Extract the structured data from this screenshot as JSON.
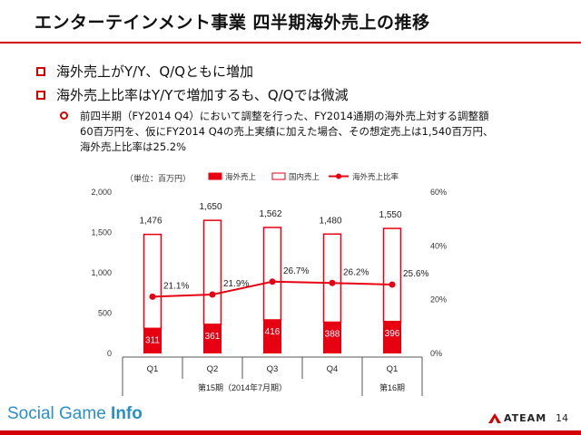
{
  "slide": {
    "title": "エンターテインメント事業 四半期海外売上の推移",
    "bullets": [
      "海外売上がY/Y、Q/Qともに増加",
      "海外売上比率はY/Yで増加するも、Q/Qでは微減"
    ],
    "sub_bullet_lines": [
      "前四半期（FY2014 Q4）において調整を行った、FY2014通期の海外売上対する調整額",
      "60百万円を、仮にFY2014 Q4の売上実績に加えた場合、その想定売上は1,540百万円、",
      "海外売上比率は25.2%"
    ],
    "page_number": "14",
    "brand_name": "ATEAM",
    "source_logo": {
      "part1": "Social Game ",
      "part2": "Info"
    }
  },
  "chart_data": {
    "type": "bar",
    "unit_label": "（単位：百万円）",
    "categories": [
      "Q1",
      "Q2",
      "Q3",
      "Q4",
      "Q1"
    ],
    "period_groups": [
      {
        "label": "第15期（2014年7月期）",
        "span": [
          0,
          3
        ]
      },
      {
        "label": "第16期",
        "span": [
          4,
          4
        ]
      }
    ],
    "series": [
      {
        "name": "海外売上",
        "type": "bar",
        "axis": "left",
        "values": [
          311,
          361,
          416,
          388,
          396
        ],
        "color": "#e60012"
      },
      {
        "name": "国内売上",
        "type": "bar",
        "axis": "left",
        "values": [
          1165,
          1289,
          1146,
          1092,
          1154
        ],
        "color": "#ffffff"
      },
      {
        "name": "海外売上比率",
        "type": "line",
        "axis": "right",
        "values": [
          21.1,
          21.9,
          26.7,
          26.2,
          25.6
        ],
        "color": "#e60012"
      }
    ],
    "total_labels": [
      "1,476",
      "1,650",
      "1,562",
      "1,480",
      "1,550"
    ],
    "overseas_labels": [
      "311",
      "361",
      "416",
      "388",
      "396"
    ],
    "ratio_labels": [
      "21.1%",
      "21.9%",
      "26.7%",
      "26.2%",
      "25.6%"
    ],
    "y_left": {
      "min": 0,
      "max": 2000,
      "ticks": [
        0,
        500,
        1000,
        1500,
        2000
      ],
      "tick_labels": [
        "0",
        "500",
        "1,000",
        "1,500",
        "2,000"
      ]
    },
    "y_right": {
      "min": 0,
      "max": 60,
      "ticks": [
        0,
        20,
        40,
        60
      ],
      "tick_labels": [
        "0%",
        "20%",
        "40%",
        "60%"
      ]
    },
    "grid": false,
    "legend_position": "top"
  }
}
